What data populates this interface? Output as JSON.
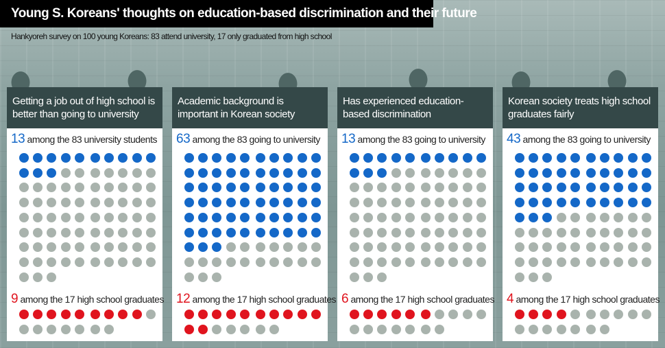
{
  "title": "Young S. Koreans' thoughts on education-based discrimination and their future",
  "subtitle": "Hankyoreh survey on 100 young Koreans: 83 attend university, 17 only graduated from high school",
  "colors": {
    "university": "#1468c8",
    "high_school": "#e0141e",
    "neutral": "#a9b3ad",
    "header": "#344848"
  },
  "chart_data": {
    "type": "pictogram",
    "title": "Young S. Koreans' thoughts on education-based discrimination and their future",
    "groups": [
      {
        "name": "university",
        "total": 83
      },
      {
        "name": "high_school",
        "total": 17
      }
    ],
    "panels": [
      {
        "question": "Getting a job out of high school is better than going to university",
        "uni_value": 13,
        "uni_text": "among the 83 university students",
        "hs_value": 9,
        "hs_text": "among the 17 high school graduates"
      },
      {
        "question": "Academic background is important in Korean society",
        "uni_value": 63,
        "uni_text": "among the 83 going to university",
        "hs_value": 12,
        "hs_text": "among the 17 high school graduates"
      },
      {
        "question": "Has experienced education-based discrimination",
        "uni_value": 13,
        "uni_text": "among the 83 going to university",
        "hs_value": 6,
        "hs_text": "among the 17 high school graduates"
      },
      {
        "question": "Korean society treats high school graduates fairly",
        "uni_value": 43,
        "uni_text": "among the 83 going to university",
        "hs_value": 4,
        "hs_text": "among the 17 high school graduates"
      }
    ]
  }
}
